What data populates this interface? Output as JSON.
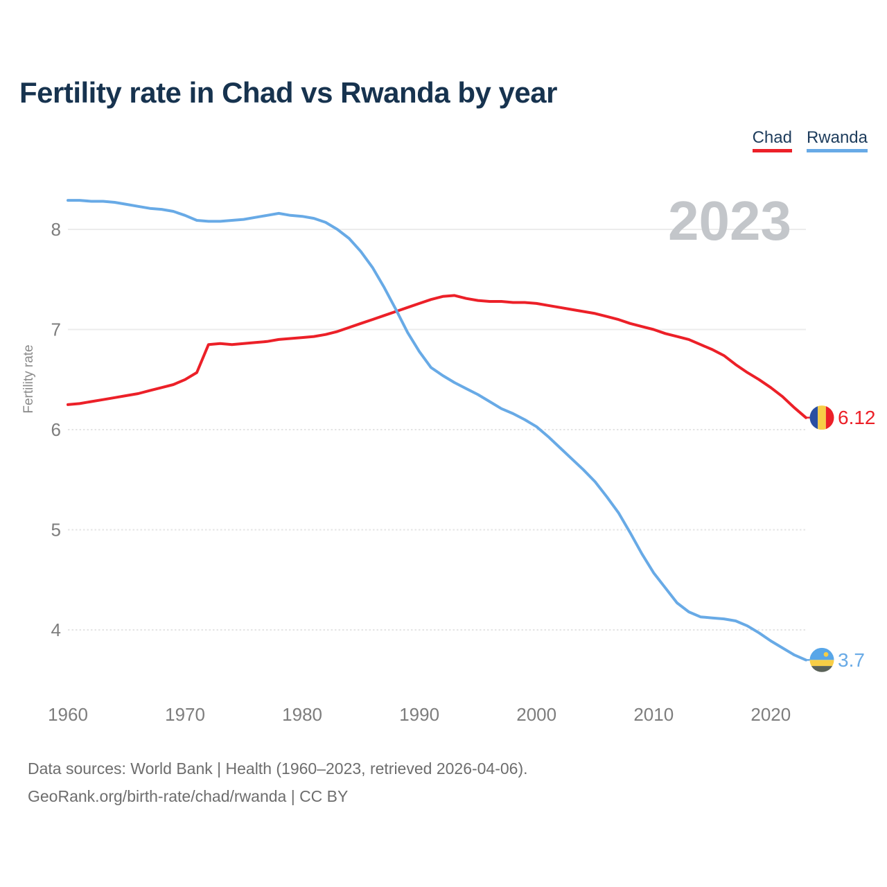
{
  "header": {
    "title": "Fertility rate in Chad vs Rwanda by year"
  },
  "legend": {
    "items": [
      {
        "label": "Chad",
        "color": "#ec2028"
      },
      {
        "label": "Rwanda",
        "color": "#68aae6"
      }
    ]
  },
  "chart_data": {
    "type": "line",
    "title": "Fertility rate in Chad vs Rwanda by year",
    "xlabel": "",
    "ylabel": "Fertility rate",
    "watermark": "2023",
    "grid": true,
    "legend_position": "top-right",
    "xlim": [
      1960,
      2023
    ],
    "ylim": [
      3.4,
      8.45
    ],
    "xticks": [
      1960,
      1970,
      1980,
      1990,
      2000,
      2010,
      2020
    ],
    "yticks": [
      8,
      7,
      6,
      5,
      4
    ],
    "solid_yticks": [
      8,
      7
    ],
    "x": [
      1960,
      1961,
      1962,
      1963,
      1964,
      1965,
      1966,
      1967,
      1968,
      1969,
      1970,
      1971,
      1972,
      1973,
      1974,
      1975,
      1976,
      1977,
      1978,
      1979,
      1980,
      1981,
      1982,
      1983,
      1984,
      1985,
      1986,
      1987,
      1988,
      1989,
      1990,
      1991,
      1992,
      1993,
      1994,
      1995,
      1996,
      1997,
      1998,
      1999,
      2000,
      2001,
      2002,
      2003,
      2004,
      2005,
      2006,
      2007,
      2008,
      2009,
      2010,
      2011,
      2012,
      2013,
      2014,
      2015,
      2016,
      2017,
      2018,
      2019,
      2020,
      2021,
      2022,
      2023
    ],
    "series": [
      {
        "name": "Chad",
        "color": "#ec2028",
        "end_label": "6.12",
        "flag": {
          "name": "chad-flag",
          "orientation": "vertical",
          "colors": [
            "#2a4fa2",
            "#f7ce46",
            "#ec2028"
          ],
          "fracs": [
            0.3333,
            0.3333,
            0.3334
          ]
        },
        "values": [
          6.25,
          6.26,
          6.28,
          6.3,
          6.32,
          6.34,
          6.36,
          6.39,
          6.42,
          6.45,
          6.5,
          6.57,
          6.85,
          6.86,
          6.85,
          6.86,
          6.87,
          6.88,
          6.9,
          6.91,
          6.92,
          6.93,
          6.95,
          6.98,
          7.02,
          7.06,
          7.1,
          7.14,
          7.18,
          7.22,
          7.26,
          7.3,
          7.33,
          7.34,
          7.31,
          7.29,
          7.28,
          7.28,
          7.27,
          7.27,
          7.26,
          7.24,
          7.22,
          7.2,
          7.18,
          7.16,
          7.13,
          7.1,
          7.06,
          7.03,
          7.0,
          6.96,
          6.93,
          6.9,
          6.85,
          6.8,
          6.74,
          6.65,
          6.57,
          6.5,
          6.42,
          6.33,
          6.22,
          6.12
        ]
      },
      {
        "name": "Rwanda",
        "color": "#68aae6",
        "end_label": "3.7",
        "flag": {
          "name": "rwanda-flag",
          "orientation": "horizontal",
          "colors": [
            "#58a6e8",
            "#f7ce46",
            "#5a6258"
          ],
          "fracs": [
            0.5,
            0.25,
            0.25
          ],
          "sun": {
            "dx": 6,
            "dy": -8,
            "r": 3.4,
            "color": "#f7ce46"
          }
        },
        "values": [
          8.29,
          8.29,
          8.28,
          8.28,
          8.27,
          8.25,
          8.23,
          8.21,
          8.2,
          8.18,
          8.14,
          8.09,
          8.08,
          8.08,
          8.09,
          8.1,
          8.12,
          8.14,
          8.16,
          8.14,
          8.13,
          8.11,
          8.07,
          8.0,
          7.91,
          7.78,
          7.62,
          7.42,
          7.2,
          6.97,
          6.78,
          6.62,
          6.54,
          6.47,
          6.41,
          6.35,
          6.28,
          6.21,
          6.16,
          6.1,
          6.03,
          5.93,
          5.82,
          5.71,
          5.6,
          5.48,
          5.33,
          5.17,
          4.97,
          4.76,
          4.57,
          4.42,
          4.27,
          4.18,
          4.13,
          4.12,
          4.11,
          4.09,
          4.04,
          3.97,
          3.89,
          3.82,
          3.75,
          3.7
        ]
      }
    ]
  },
  "footer": {
    "line1": "Data sources: World Bank | Health (1960–2023, retrieved 2026-04-06).",
    "line2": "GeoRank.org/birth-rate/chad/rwanda | CC BY"
  }
}
